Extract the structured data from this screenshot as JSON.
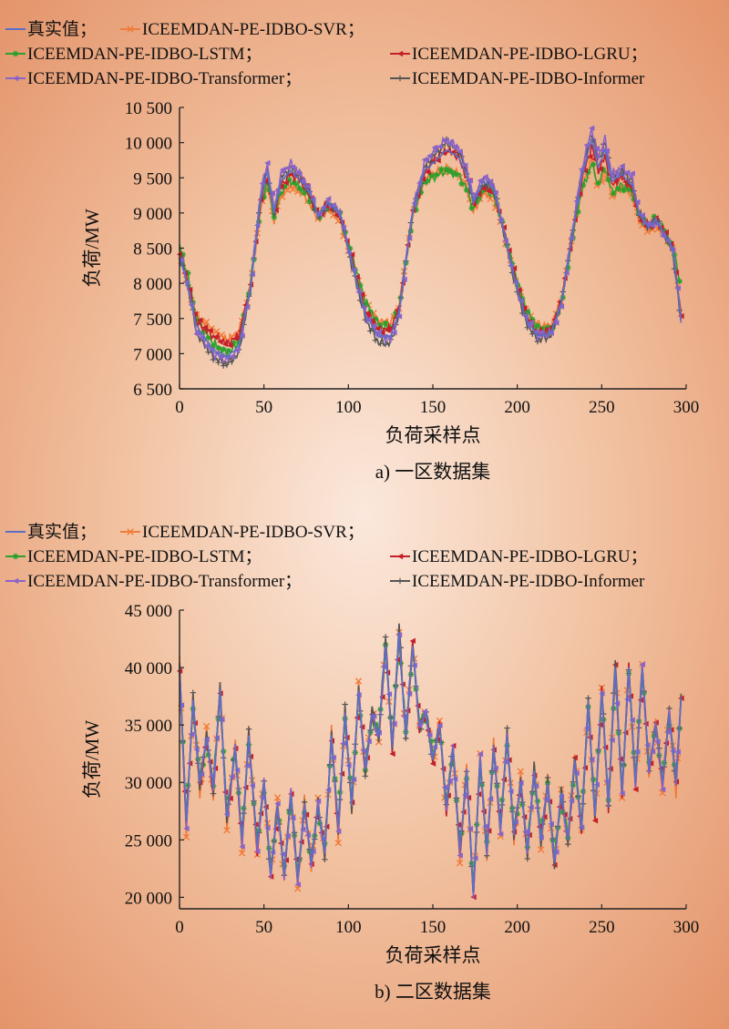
{
  "legend_entries": [
    {
      "label": "真实值；",
      "color": "#5b6fc6",
      "marker": "none"
    },
    {
      "label": "ICEEMDAN-PE-IDBO-SVR；",
      "color": "#f07b3a",
      "marker": "x"
    },
    {
      "label": "ICEEMDAN-PE-IDBO-LSTM；",
      "color": "#2ca02c",
      "marker": "star"
    },
    {
      "label": "ICEEMDAN-PE-IDBO-LGRU；",
      "color": "#c4202a",
      "marker": "tri-left"
    },
    {
      "label": "ICEEMDAN-PE-IDBO-Transformer；",
      "color": "#8a63c9",
      "marker": "tri-left"
    },
    {
      "label": "ICEEMDAN-PE-IDBO-Informer",
      "color": "#555555",
      "marker": "plus"
    }
  ],
  "chart_data": [
    {
      "type": "line",
      "title": "",
      "caption": "a) 一区数据集",
      "xlabel": "负荷采样点",
      "ylabel": "负荷/MW",
      "xlim": [
        0,
        300
      ],
      "ylim": [
        6500,
        10500
      ],
      "xticks": [
        0,
        50,
        100,
        150,
        200,
        250,
        300
      ],
      "yticks": [
        6500,
        7000,
        7500,
        8000,
        8500,
        9000,
        9500,
        10000,
        10500
      ],
      "ytick_labels": [
        "6 500",
        "7 000",
        "7 500",
        "8 000",
        "8 500",
        "9 000",
        "9 500",
        "10 000",
        "10 500"
      ],
      "xtick_labels": [
        "0",
        "50",
        "100",
        "150",
        "200",
        "250",
        "300"
      ],
      "grid": false,
      "legend": "top",
      "x_keypoints": [
        0,
        5,
        10,
        20,
        28,
        35,
        42,
        48,
        52,
        56,
        60,
        66,
        72,
        78,
        82,
        88,
        95,
        102,
        110,
        118,
        125,
        130,
        138,
        145,
        150,
        158,
        165,
        170,
        174,
        180,
        186,
        190,
        198,
        205,
        212,
        220,
        226,
        232,
        238,
        244,
        248,
        252,
        256,
        262,
        268,
        272,
        278,
        282,
        287,
        292,
        297
      ],
      "series": [
        {
          "name": "真实值",
          "values": [
            8400,
            7950,
            7400,
            7050,
            6950,
            7100,
            7900,
            9200,
            9600,
            9000,
            9450,
            9600,
            9450,
            9250,
            8950,
            9150,
            9000,
            8300,
            7550,
            7250,
            7250,
            7600,
            9000,
            9600,
            9700,
            9900,
            9800,
            9550,
            9150,
            9450,
            9350,
            8950,
            8100,
            7500,
            7250,
            7300,
            7700,
            8600,
            9500,
            10050,
            9650,
            9900,
            9450,
            9550,
            9400,
            9000,
            8800,
            8900,
            8700,
            8500,
            7500
          ]
        },
        {
          "name": "ICEEMDAN-PE-IDBO-SVR",
          "values": [
            8450,
            8000,
            7550,
            7300,
            7200,
            7300,
            7950,
            9050,
            9400,
            8900,
            9250,
            9400,
            9300,
            9100,
            8900,
            9050,
            8900,
            8300,
            7700,
            7450,
            7450,
            7700,
            8950,
            9450,
            9550,
            9650,
            9550,
            9350,
            9000,
            9300,
            9200,
            8900,
            8100,
            7600,
            7400,
            7400,
            7750,
            8550,
            9350,
            9750,
            9350,
            9600,
            9250,
            9350,
            9250,
            8900,
            8750,
            8850,
            8700,
            8450,
            7600
          ]
        },
        {
          "name": "ICEEMDAN-PE-IDBO-LSTM",
          "values": [
            8550,
            8100,
            7500,
            7150,
            7000,
            7150,
            8000,
            9100,
            9450,
            8950,
            9300,
            9450,
            9350,
            9200,
            8950,
            9100,
            8950,
            8400,
            7750,
            7400,
            7350,
            7650,
            8950,
            9450,
            9500,
            9600,
            9550,
            9350,
            9050,
            9350,
            9250,
            8950,
            8200,
            7650,
            7350,
            7300,
            7700,
            8550,
            9300,
            9700,
            9400,
            9650,
            9300,
            9400,
            9300,
            8950,
            8800,
            8950,
            8750,
            8550,
            7950
          ]
        },
        {
          "name": "ICEEMDAN-PE-IDBO-LGRU",
          "values": [
            8450,
            8000,
            7450,
            7250,
            7150,
            7250,
            7950,
            9150,
            9550,
            9000,
            9400,
            9550,
            9450,
            9200,
            8950,
            9150,
            8950,
            8350,
            7600,
            7350,
            7350,
            7650,
            9000,
            9550,
            9750,
            9900,
            9800,
            9500,
            9150,
            9400,
            9300,
            8950,
            8150,
            7550,
            7300,
            7350,
            7750,
            8600,
            9450,
            9950,
            9600,
            9800,
            9400,
            9500,
            9350,
            8950,
            8800,
            8900,
            8700,
            8500,
            7550
          ]
        },
        {
          "name": "ICEEMDAN-PE-IDBO-Transformer",
          "values": [
            8400,
            7950,
            7350,
            7000,
            6900,
            7050,
            7950,
            9300,
            9700,
            9050,
            9550,
            9700,
            9550,
            9300,
            8950,
            9150,
            9000,
            8300,
            7550,
            7250,
            7200,
            7550,
            9050,
            9700,
            9850,
            10050,
            9950,
            9650,
            9200,
            9500,
            9400,
            8950,
            8100,
            7500,
            7250,
            7300,
            7700,
            8650,
            9600,
            10200,
            9800,
            10050,
            9550,
            9650,
            9500,
            9000,
            8800,
            8900,
            8700,
            8500,
            7500
          ]
        },
        {
          "name": "ICEEMDAN-PE-IDBO-Informer",
          "values": [
            8400,
            7950,
            7300,
            6950,
            6850,
            7000,
            7900,
            9250,
            9650,
            9000,
            9500,
            9650,
            9500,
            9250,
            8950,
            9150,
            9000,
            8250,
            7500,
            7150,
            7150,
            7550,
            9050,
            9650,
            9800,
            10000,
            9900,
            9600,
            9200,
            9450,
            9350,
            8950,
            8050,
            7450,
            7200,
            7250,
            7700,
            8650,
            9550,
            10150,
            9750,
            10000,
            9500,
            9600,
            9450,
            9000,
            8800,
            8900,
            8700,
            8450,
            7450
          ]
        }
      ]
    },
    {
      "type": "line",
      "title": "",
      "caption": "b) 二区数据集",
      "xlabel": "负荷采样点",
      "ylabel": "负荷/MW",
      "xlim": [
        0,
        300
      ],
      "ylim": [
        19000,
        45000
      ],
      "xticks": [
        0,
        50,
        100,
        150,
        200,
        250,
        300
      ],
      "yticks": [
        20000,
        25000,
        30000,
        35000,
        40000,
        45000
      ],
      "ytick_labels": [
        "20 000",
        "25 000",
        "30 000",
        "35 000",
        "40 000",
        "45 000"
      ],
      "xtick_labels": [
        "0",
        "50",
        "100",
        "150",
        "200",
        "250",
        "300"
      ],
      "grid": false,
      "legend": "top",
      "x_keypoints": [
        0,
        4,
        8,
        12,
        16,
        20,
        24,
        28,
        33,
        37,
        41,
        46,
        50,
        54,
        58,
        62,
        66,
        70,
        74,
        78,
        82,
        86,
        90,
        94,
        98,
        102,
        106,
        110,
        114,
        118,
        122,
        126,
        130,
        134,
        138,
        142,
        146,
        150,
        154,
        158,
        162,
        166,
        170,
        174,
        178,
        182,
        186,
        190,
        194,
        198,
        202,
        206,
        210,
        214,
        218,
        222,
        226,
        230,
        234,
        238,
        242,
        246,
        250,
        254,
        258,
        262,
        266,
        270,
        274,
        278,
        282,
        286,
        290,
        294,
        298
      ],
      "series": [
        {
          "name": "真实值",
          "values": [
            40000,
            26500,
            37000,
            30000,
            34000,
            29500,
            38000,
            27000,
            33000,
            25000,
            34000,
            24500,
            30000,
            22000,
            28000,
            22000,
            29000,
            21500,
            28000,
            23000,
            28000,
            24000,
            34000,
            26000,
            36000,
            28000,
            38000,
            31000,
            36000,
            34000,
            42000,
            33000,
            43000,
            34000,
            42000,
            35000,
            36000,
            32000,
            35000,
            28000,
            33000,
            24000,
            31000,
            20500,
            32000,
            24000,
            33000,
            26000,
            34000,
            25500,
            30000,
            24000,
            31000,
            25000,
            30000,
            23000,
            29000,
            25000,
            32000,
            26000,
            37000,
            27000,
            38000,
            28000,
            40000,
            29000,
            40000,
            30000,
            40000,
            31000,
            35000,
            30000,
            36000,
            30000,
            40000
          ]
        },
        {
          "name": "ICEEMDAN-PE-IDBO-SVR",
          "values": [
            40500,
            25500,
            37500,
            29000,
            34500,
            28500,
            38500,
            26000,
            33500,
            24000,
            34500,
            23500,
            30500,
            21500,
            28500,
            21500,
            29500,
            21000,
            28500,
            22500,
            28500,
            23500,
            34500,
            25000,
            36500,
            27500,
            38500,
            30500,
            36500,
            33500,
            42500,
            32500,
            43500,
            33500,
            42500,
            34500,
            36500,
            31500,
            35500,
            27000,
            33500,
            23000,
            31500,
            20000,
            32500,
            23500,
            33500,
            25500,
            34500,
            25000,
            30500,
            23500,
            31500,
            24500,
            30500,
            22500,
            29500,
            24500,
            32500,
            25500,
            37500,
            26500,
            38500,
            27500,
            40500,
            28500,
            40500,
            29000,
            40500,
            30500,
            35500,
            29000,
            36500,
            29000,
            40500
          ]
        },
        {
          "name": "ICEEMDAN-PE-IDBO-LSTM",
          "values": [
            39500,
            27000,
            36500,
            30500,
            33500,
            30000,
            37500,
            27500,
            32500,
            25500,
            33500,
            25000,
            29500,
            22500,
            27500,
            22500,
            28500,
            22000,
            27500,
            23500,
            27500,
            24500,
            33500,
            26500,
            35500,
            28500,
            37500,
            31500,
            35500,
            34500,
            41500,
            33500,
            42500,
            34500,
            41500,
            35500,
            35500,
            32500,
            34500,
            28500,
            32500,
            24500,
            30500,
            21000,
            31500,
            24500,
            32500,
            26500,
            33500,
            26000,
            29500,
            24500,
            30500,
            25500,
            29500,
            23500,
            28500,
            25500,
            31500,
            26500,
            36500,
            27500,
            37500,
            28500,
            39500,
            29500,
            39500,
            30500,
            39500,
            31500,
            34500,
            30500,
            35500,
            30500,
            39500
          ]
        },
        {
          "name": "ICEEMDAN-PE-IDBO-LGRU",
          "values": [
            40000,
            26000,
            37000,
            29500,
            34000,
            29000,
            38000,
            26500,
            33000,
            24500,
            34000,
            24000,
            30000,
            21800,
            28000,
            21800,
            29000,
            21200,
            28000,
            22800,
            28000,
            23800,
            34000,
            25500,
            36000,
            27800,
            38000,
            30800,
            36000,
            33800,
            42000,
            32800,
            43000,
            33800,
            42000,
            34800,
            36000,
            31800,
            35000,
            27500,
            33000,
            23500,
            31000,
            20200,
            32000,
            23800,
            33000,
            25800,
            34000,
            25200,
            30000,
            23800,
            31000,
            24800,
            30000,
            22800,
            29000,
            24800,
            32000,
            25800,
            37000,
            26800,
            38000,
            27800,
            40000,
            28800,
            40000,
            29800,
            40000,
            30800,
            35000,
            29800,
            36000,
            29800,
            40000
          ]
        },
        {
          "name": "ICEEMDAN-PE-IDBO-Transformer",
          "values": [
            40000,
            26200,
            37000,
            29800,
            34000,
            29200,
            38000,
            26800,
            33000,
            24800,
            34000,
            24200,
            30000,
            21900,
            28000,
            21900,
            29000,
            21400,
            28000,
            22900,
            28000,
            23900,
            34000,
            25800,
            36000,
            27900,
            38000,
            30900,
            36000,
            33900,
            42000,
            32900,
            43000,
            33900,
            42000,
            34900,
            36000,
            31900,
            35000,
            27800,
            33000,
            23800,
            31000,
            20400,
            32000,
            23900,
            33000,
            25900,
            34000,
            25400,
            30000,
            23900,
            31000,
            24900,
            30000,
            22900,
            29000,
            24900,
            32000,
            25900,
            37000,
            26900,
            38000,
            27900,
            40000,
            28900,
            40000,
            29900,
            40000,
            30900,
            35000,
            29900,
            36000,
            29900,
            40000
          ]
        },
        {
          "name": "ICEEMDAN-PE-IDBO-Informer",
          "values": [
            40300,
            26300,
            37300,
            29700,
            34300,
            29300,
            38300,
            26700,
            33300,
            24700,
            34300,
            24300,
            30300,
            21700,
            28300,
            21700,
            29300,
            21300,
            28300,
            22700,
            28300,
            23700,
            34300,
            25700,
            36300,
            27700,
            38300,
            30700,
            36300,
            33700,
            42800,
            32700,
            43800,
            33700,
            42300,
            34700,
            36300,
            31700,
            35300,
            27700,
            33300,
            23700,
            31300,
            20000,
            32300,
            23700,
            33300,
            25700,
            34300,
            25300,
            30300,
            23700,
            31300,
            24700,
            30300,
            22700,
            29300,
            24700,
            32300,
            25700,
            37300,
            26700,
            38300,
            27700,
            40800,
            28700,
            40300,
            29700,
            40300,
            30700,
            35300,
            29700,
            36300,
            29700,
            40300
          ]
        }
      ]
    }
  ]
}
